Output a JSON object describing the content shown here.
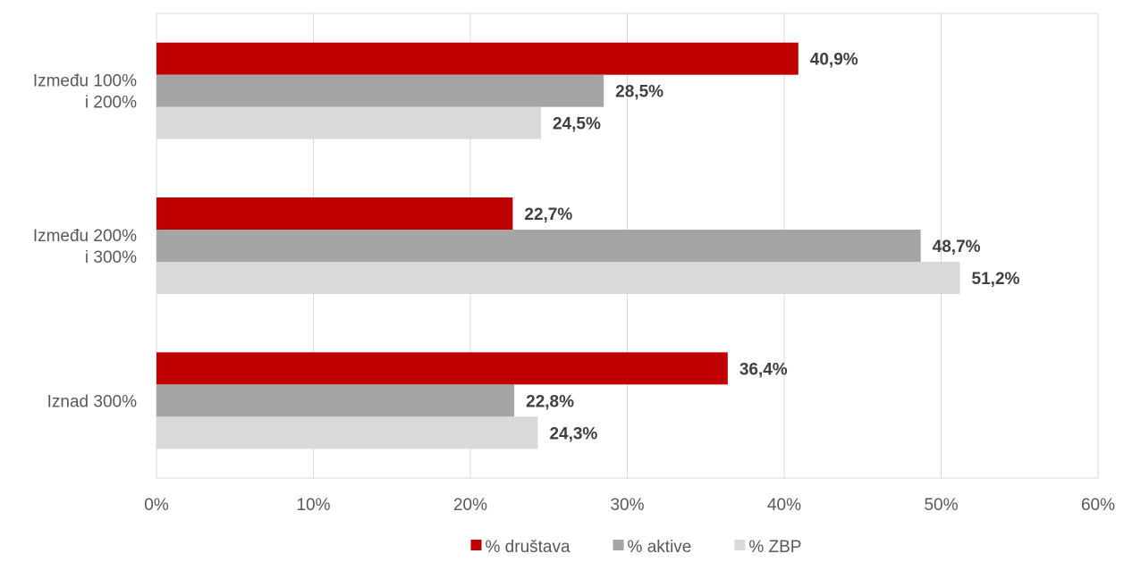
{
  "chart_data": {
    "type": "bar",
    "orientation": "horizontal",
    "title": "",
    "xlabel": "",
    "ylabel": "",
    "categories": [
      [
        "Između 100%",
        "i 200%"
      ],
      [
        "Između 200%",
        "i 300%"
      ],
      [
        "Iznad 300%"
      ]
    ],
    "series": [
      {
        "name": "% društava",
        "color": "#C00000",
        "values": [
          40.9,
          22.7,
          36.4
        ],
        "labels": [
          "40,9%",
          "22,7%",
          "36,4%"
        ]
      },
      {
        "name": "% aktive",
        "color": "#A5A5A5",
        "values": [
          28.5,
          48.7,
          22.8
        ],
        "labels": [
          "28,5%",
          "48,7%",
          "22,8%"
        ]
      },
      {
        "name": "% ZBP",
        "color": "#D9D9D9",
        "values": [
          24.5,
          51.2,
          24.3
        ],
        "labels": [
          "24,5%",
          "51,2%",
          "24,3%"
        ]
      }
    ],
    "xlim": [
      0,
      60
    ],
    "x_ticks": [
      "0%",
      "10%",
      "20%",
      "30%",
      "40%",
      "50%",
      "60%"
    ],
    "grid": true,
    "legend_position": "bottom",
    "gridline_color": "#D9D9D9"
  }
}
